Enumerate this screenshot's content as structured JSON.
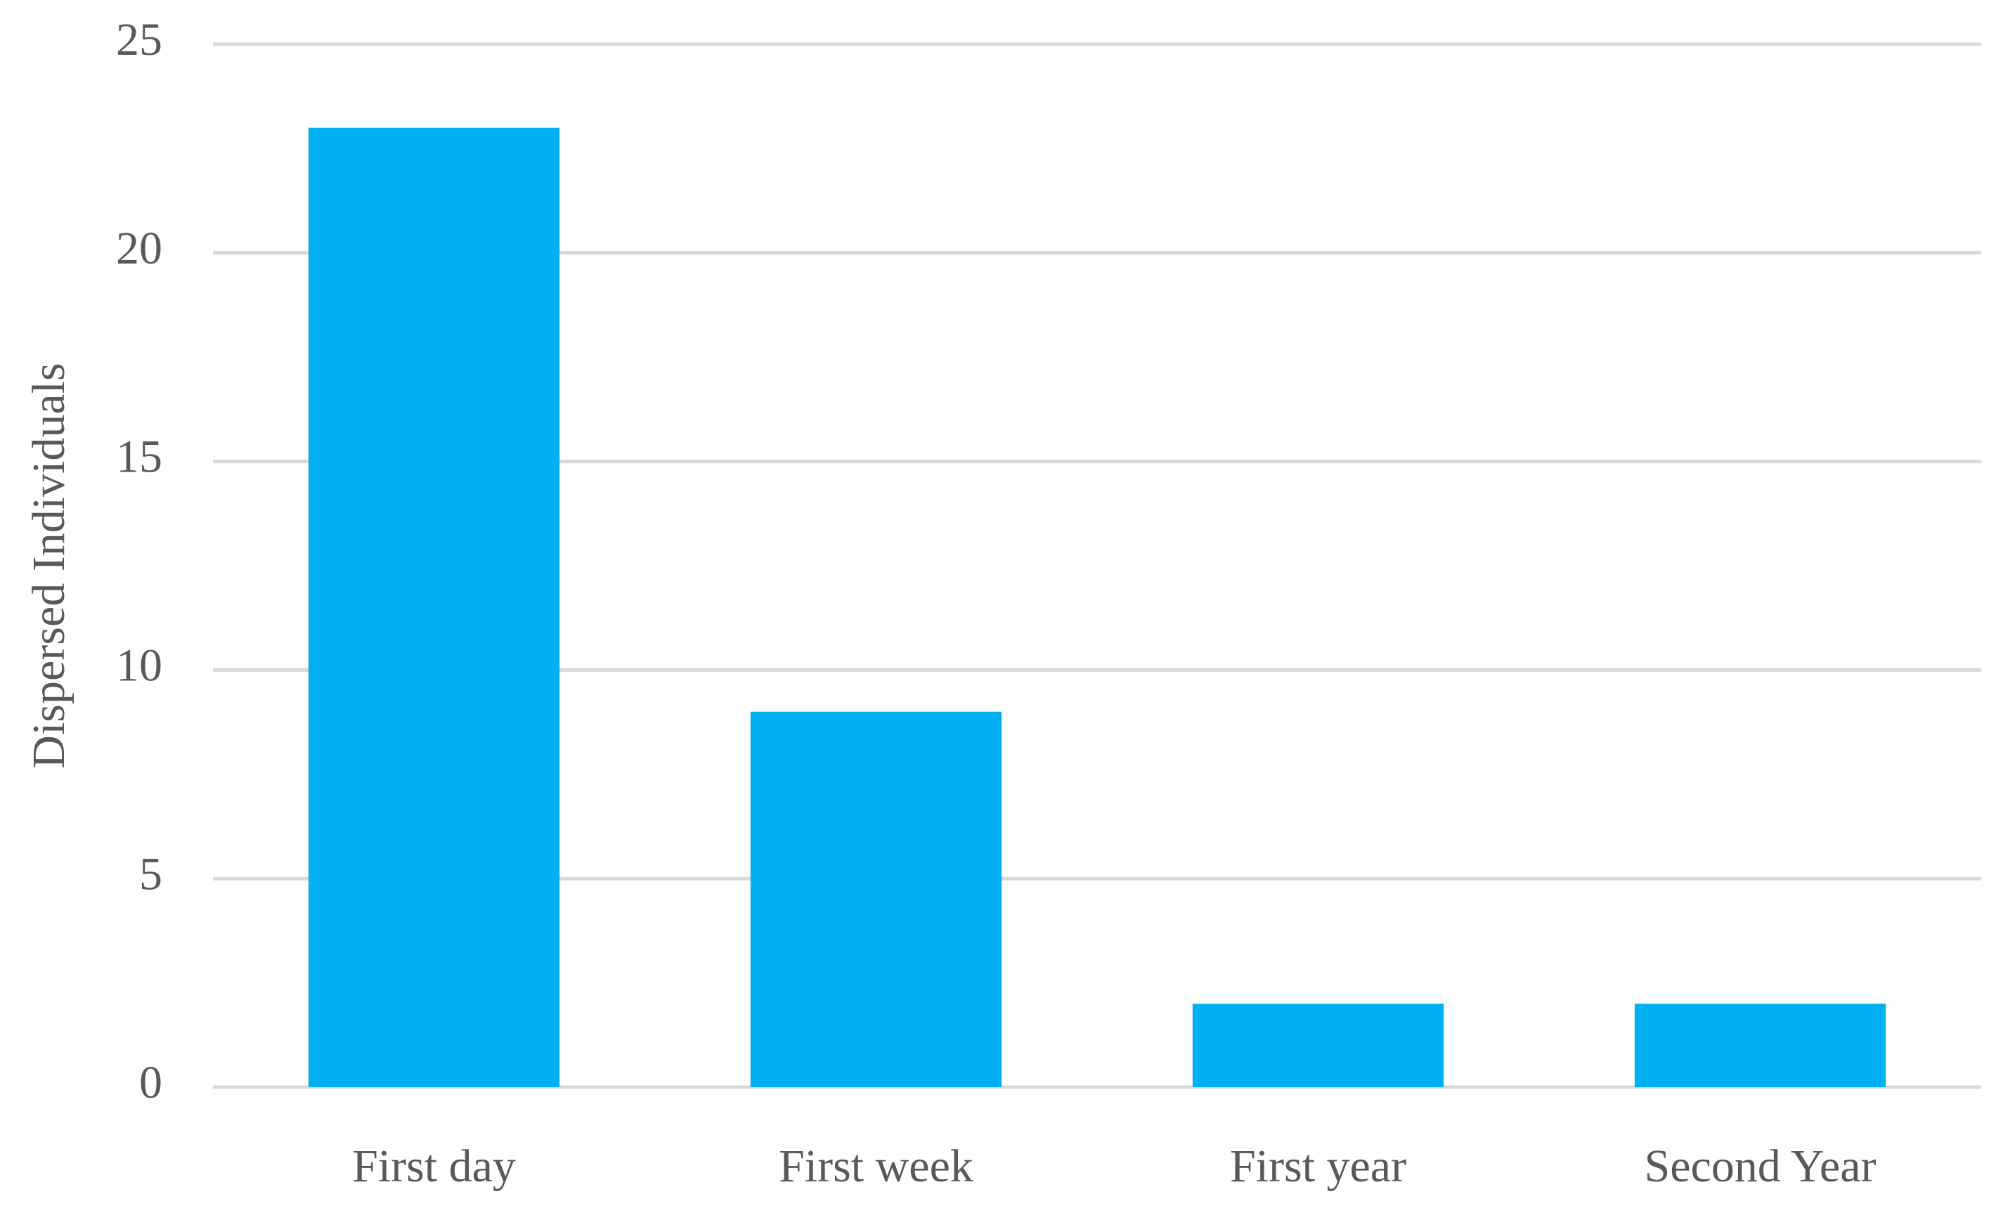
{
  "chart_data": {
    "type": "bar",
    "y_label": "Dispersed Individuals",
    "categories": [
      "First day",
      "First week",
      "First year",
      "Second Year"
    ],
    "values": [
      23,
      9,
      2,
      2
    ],
    "color": "#00b0f0",
    "ylim": [
      0,
      25
    ],
    "yticks": [
      0,
      5,
      10,
      15,
      20,
      25
    ],
    "grid": true
  }
}
